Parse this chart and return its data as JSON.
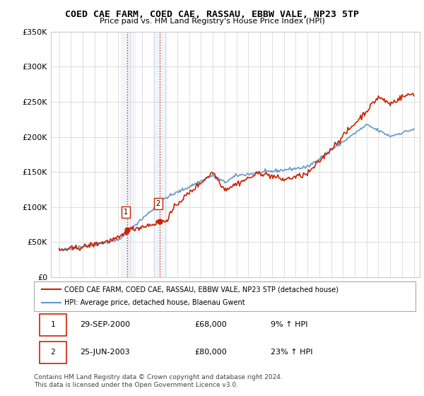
{
  "title": "COED CAE FARM, COED CAE, RASSAU, EBBW VALE, NP23 5TP",
  "subtitle": "Price paid vs. HM Land Registry's House Price Index (HPI)",
  "xlabel": "",
  "ylabel": "",
  "ylim": [
    0,
    350000
  ],
  "yticks": [
    0,
    50000,
    100000,
    150000,
    200000,
    250000,
    300000,
    350000
  ],
  "ytick_labels": [
    "£0",
    "£50K",
    "£100K",
    "£150K",
    "£200K",
    "£250K",
    "£300K",
    "£350K"
  ],
  "sale1_date": 2000.747,
  "sale1_price": 68000,
  "sale1_label": "1",
  "sale2_date": 2003.479,
  "sale2_price": 80000,
  "sale2_label": "2",
  "legend_line1": "COED CAE FARM, COED CAE, RASSAU, EBBW VALE, NP23 5TP (detached house)",
  "legend_line2": "HPI: Average price, detached house, Blaenau Gwent",
  "table_row1": [
    "1",
    "29-SEP-2000",
    "£68,000",
    "9% ↑ HPI"
  ],
  "table_row2": [
    "2",
    "25-JUN-2003",
    "£80,000",
    "23% ↑ HPI"
  ],
  "footnote": "Contains HM Land Registry data © Crown copyright and database right 2024.\nThis data is licensed under the Open Government Licence v3.0.",
  "hpi_color": "#6699cc",
  "price_color": "#cc2200",
  "sale_marker_color": "#cc2200",
  "background_color": "#ffffff",
  "grid_color": "#dddddd",
  "shade_color": "#c8d8e8"
}
